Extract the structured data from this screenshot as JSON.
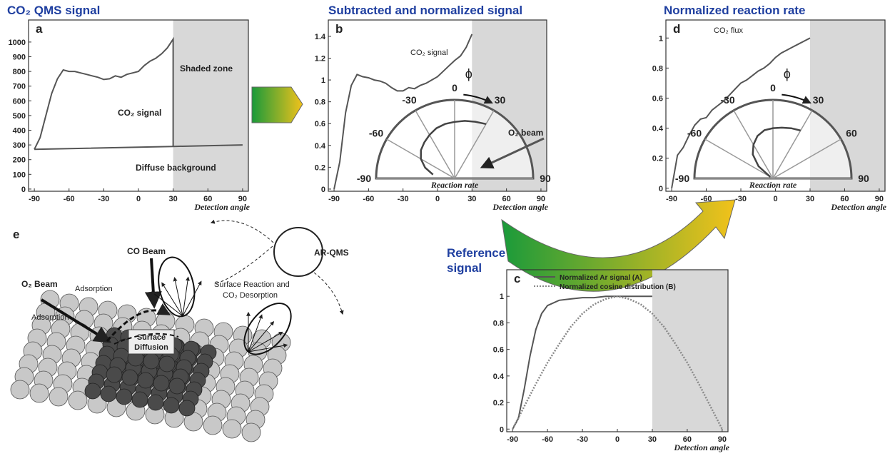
{
  "chart_data": [
    {
      "type": "line",
      "panel": "a",
      "title": "CO₂ QMS signal",
      "xlabel": "Detection angle",
      "xlim": [
        -95,
        95
      ],
      "ylim": [
        -15,
        1150
      ],
      "xticks": [
        -90,
        -60,
        -30,
        0,
        30,
        60,
        90
      ],
      "yticks": [
        0,
        100,
        200,
        300,
        400,
        500,
        600,
        700,
        800,
        900,
        1000
      ],
      "shaded": [
        30,
        95
      ],
      "annotations": [
        "Shaded zone"
      ],
      "series": [
        {
          "name": "CO₂ signal",
          "color": "#555555",
          "x": [
            -90,
            -85,
            -80,
            -75,
            -70,
            -65,
            -60,
            -55,
            -50,
            -45,
            -40,
            -35,
            -30,
            -25,
            -20,
            -15,
            -10,
            -5,
            0,
            5,
            10,
            15,
            20,
            25,
            30,
            30
          ],
          "values": [
            270,
            350,
            500,
            650,
            750,
            810,
            800,
            800,
            790,
            780,
            770,
            760,
            745,
            750,
            770,
            760,
            780,
            790,
            800,
            840,
            870,
            890,
            920,
            960,
            1020,
            290
          ]
        },
        {
          "name": "Diffuse background",
          "color": "#555555",
          "x": [
            -90,
            30,
            90
          ],
          "values": [
            270,
            290,
            300
          ]
        }
      ]
    },
    {
      "type": "line",
      "panel": "b",
      "title": "Subtracted and normalized signal",
      "xlabel": "Detection angle",
      "xlim": [
        -95,
        95
      ],
      "ylim": [
        -0.02,
        1.55
      ],
      "xticks": [
        -90,
        -60,
        -30,
        0,
        30,
        60,
        90
      ],
      "yticks": [
        0.0,
        0.2,
        0.4,
        0.6,
        0.8,
        1.0,
        1.2,
        1.4
      ],
      "shaded": [
        30,
        95
      ],
      "series": [
        {
          "name": "CO₂ signal",
          "color": "#555555",
          "x": [
            -90,
            -85,
            -80,
            -75,
            -70,
            -65,
            -60,
            -55,
            -50,
            -45,
            -40,
            -35,
            -30,
            -25,
            -20,
            -15,
            -10,
            -5,
            0,
            5,
            10,
            15,
            20,
            25,
            30
          ],
          "values": [
            0,
            0.25,
            0.7,
            0.95,
            1.05,
            1.03,
            1.02,
            1.0,
            0.99,
            0.97,
            0.93,
            0.9,
            0.9,
            0.93,
            0.92,
            0.95,
            0.97,
            1.0,
            1.03,
            1.08,
            1.13,
            1.18,
            1.22,
            1.3,
            1.42
          ]
        }
      ],
      "polar": {
        "label": "Reaction rate",
        "phi": "ϕ",
        "beam": "O₂ beam",
        "rlim": [
          0,
          1.25
        ],
        "ticks": [
          -90,
          -60,
          -30,
          0,
          30,
          90
        ],
        "theta": [
          -80,
          -70,
          -60,
          -50,
          -40,
          -30,
          -20,
          -10,
          0,
          10,
          20,
          30
        ],
        "r": [
          0.35,
          0.5,
          0.62,
          0.7,
          0.75,
          0.8,
          0.85,
          0.88,
          0.9,
          0.93,
          0.96,
          1.0
        ]
      }
    },
    {
      "type": "line",
      "panel": "d",
      "title": "Normalized reaction rate",
      "xlabel": "Detection angle",
      "xlim": [
        -95,
        95
      ],
      "ylim": [
        -0.02,
        1.12
      ],
      "xticks": [
        -90,
        -60,
        -30,
        0,
        30,
        60,
        90
      ],
      "yticks": [
        0.0,
        0.2,
        0.4,
        0.6,
        0.8,
        1.0
      ],
      "shaded": [
        30,
        95
      ],
      "series": [
        {
          "name": "CO₂ flux",
          "color": "#555555",
          "x": [
            -90,
            -85,
            -80,
            -75,
            -70,
            -65,
            -60,
            -55,
            -50,
            -45,
            -40,
            -35,
            -30,
            -25,
            -20,
            -15,
            -10,
            -5,
            0,
            5,
            10,
            15,
            20,
            25,
            30
          ],
          "values": [
            0,
            0.22,
            0.27,
            0.35,
            0.42,
            0.46,
            0.47,
            0.52,
            0.55,
            0.58,
            0.62,
            0.66,
            0.7,
            0.72,
            0.75,
            0.78,
            0.8,
            0.83,
            0.87,
            0.9,
            0.92,
            0.94,
            0.96,
            0.98,
            1.0
          ]
        }
      ],
      "polar": {
        "label": "Reaction rate",
        "phi": "ϕ",
        "rlim": [
          0,
          1.25
        ],
        "ticks": [
          -90,
          -60,
          -30,
          0,
          30,
          60,
          90
        ],
        "theta": [
          -60,
          -50,
          -40,
          -30,
          -20,
          -10,
          0,
          10,
          20,
          30
        ],
        "r": [
          0.05,
          0.3,
          0.5,
          0.62,
          0.72,
          0.78,
          0.8,
          0.82,
          0.85,
          0.88
        ]
      }
    },
    {
      "type": "line",
      "panel": "c",
      "title": "Reference signal",
      "xlabel": "Detection angle",
      "xlim": [
        -95,
        95
      ],
      "ylim": [
        -0.02,
        1.2
      ],
      "xticks": [
        -90,
        -60,
        -30,
        0,
        30,
        60,
        90
      ],
      "yticks": [
        0.0,
        0.2,
        0.4,
        0.6,
        0.8,
        1.0
      ],
      "shaded": [
        30,
        95
      ],
      "legend": "upper left",
      "series": [
        {
          "name": "Normalized Ar signal (A)",
          "color": "#555555",
          "dash": false,
          "x": [
            -90,
            -85,
            -80,
            -75,
            -70,
            -65,
            -60,
            -50,
            -40,
            -30,
            -20,
            -10,
            0,
            10,
            20,
            30
          ],
          "values": [
            0,
            0.08,
            0.3,
            0.55,
            0.75,
            0.87,
            0.93,
            0.97,
            0.98,
            0.99,
            0.99,
            1.0,
            1.0,
            1.0,
            1.0,
            1.0
          ]
        },
        {
          "name": "Normalized cosine distribution (B)",
          "color": "#888888",
          "dash": true,
          "x": [
            -90,
            -80,
            -70,
            -60,
            -50,
            -40,
            -30,
            -20,
            -10,
            0,
            10,
            20,
            30,
            40,
            50,
            60,
            70,
            80,
            90
          ],
          "values": [
            0,
            0.17,
            0.34,
            0.5,
            0.64,
            0.77,
            0.87,
            0.94,
            0.98,
            1.0,
            0.98,
            0.94,
            0.87,
            0.77,
            0.64,
            0.5,
            0.34,
            0.17,
            0
          ]
        }
      ]
    }
  ],
  "diagram": {
    "label": "e",
    "co_beam": "CO Beam",
    "o2_beam": "O₂ Beam",
    "adsorption_1": "Adsorption",
    "adsorption_2": "Adsorption",
    "reaction_1": "Surface Reaction and",
    "reaction_2": "CO₂ Desorption",
    "diffusion_1": "Surface",
    "diffusion_2": "Diffusion",
    "detector": "AR-QMS"
  }
}
